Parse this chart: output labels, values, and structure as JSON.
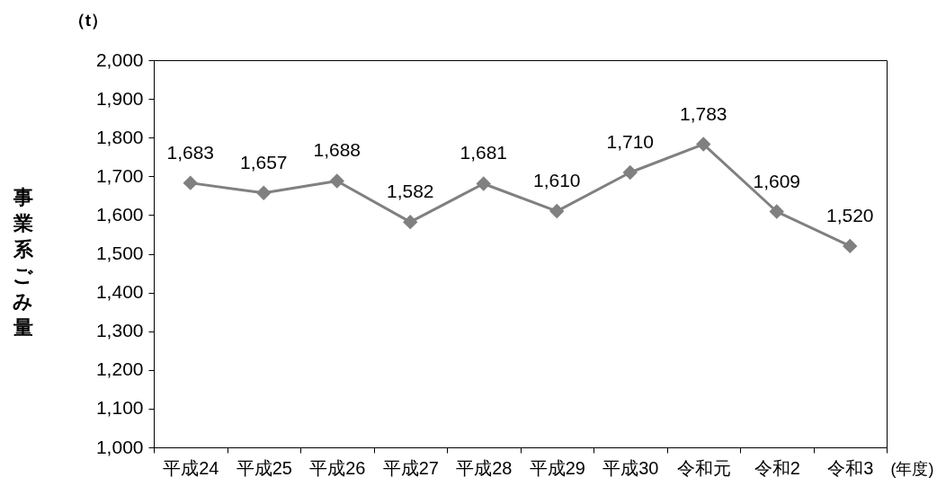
{
  "chart_data": {
    "type": "line",
    "categories": [
      "平成24",
      "平成25",
      "平成26",
      "平成27",
      "平成28",
      "平成29",
      "平成30",
      "令和元",
      "令和2",
      "令和3"
    ],
    "values": [
      1683,
      1657,
      1688,
      1582,
      1681,
      1610,
      1710,
      1783,
      1609,
      1520
    ],
    "value_labels": [
      "1,683",
      "1,657",
      "1,688",
      "1,582",
      "1,681",
      "1,610",
      "1,710",
      "1,783",
      "1,609",
      "1,520"
    ],
    "color": "#808080",
    "xlabel": "(年度)",
    "ylabel": "事業系ごみ量",
    "annotations": [
      "（t）"
    ],
    "ylim": [
      1000,
      2000
    ],
    "yticks": [
      {
        "value": 1000,
        "label": "1,000"
      },
      {
        "value": 1100,
        "label": "1,100"
      },
      {
        "value": 1200,
        "label": "1,200"
      },
      {
        "value": 1300,
        "label": "1,300"
      },
      {
        "value": 1400,
        "label": "1,400"
      },
      {
        "value": 1500,
        "label": "1,500"
      },
      {
        "value": 1600,
        "label": "1,600"
      },
      {
        "value": 1700,
        "label": "1,700"
      },
      {
        "value": 1800,
        "label": "1,800"
      },
      {
        "value": 1900,
        "label": "1,900"
      },
      {
        "value": 2000,
        "label": "2,000"
      }
    ],
    "grid": false,
    "marker": "diamond",
    "line_style": "solid"
  }
}
